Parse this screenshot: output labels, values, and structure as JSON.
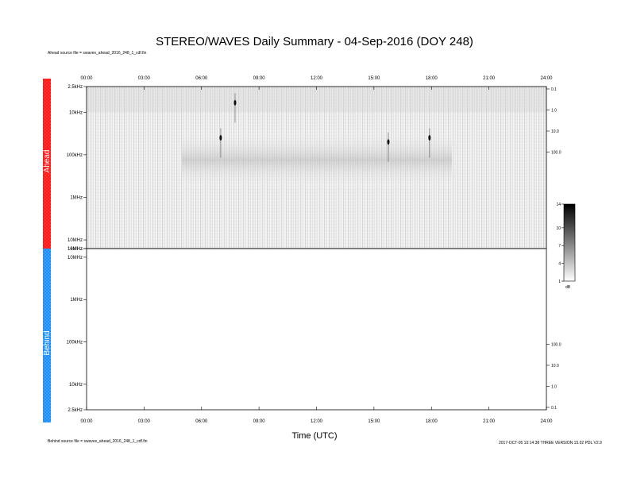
{
  "title": "STEREO/WAVES Daily Summary - 04-Sep-2016 (DOY 248)",
  "ahead_source": "Ahead source file = swaves_ahead_2016_248_1_cdf.fin",
  "behind_source": "Behind source file = swaves_ahead_2016_248_1_cdf.fin",
  "footer_right": "2017-OCT-05 10:14:38 THREE VERSION 15.02 PDL V2.9",
  "chart_data": {
    "type": "heatmap",
    "title": "STEREO/WAVES Daily Summary - 04-Sep-2016 (DOY 248)",
    "xlabel": "Time (UTC)",
    "x_ticks": [
      "00:00",
      "03:00",
      "06:00",
      "09:00",
      "12:00",
      "15:00",
      "18:00",
      "21:00",
      "24:00"
    ],
    "xlim_hours": [
      0,
      24
    ],
    "panels": [
      {
        "name": "Ahead",
        "color": "#ff1a1a",
        "y_ticks": [
          "2.5kHz",
          "10kHz",
          "100kHz",
          "1MHz",
          "10MHz",
          "16MHz"
        ],
        "y_tick_freq_khz": [
          2.5,
          10,
          100,
          1000,
          10000,
          16000
        ],
        "right_ticks": [
          "0.1",
          "1.0",
          "10.0",
          "100.0"
        ],
        "has_data": true,
        "bursts": [
          {
            "time_h": 7.0,
            "freq_khz": 40
          },
          {
            "time_h": 7.75,
            "freq_khz": 6
          },
          {
            "time_h": 15.75,
            "freq_khz": 50
          },
          {
            "time_h": 17.9,
            "freq_khz": 40
          }
        ]
      },
      {
        "name": "Behind",
        "color": "#1a8cff",
        "y_ticks": [
          "16MHz",
          "10MHz",
          "1MHz",
          "100kHz",
          "10kHz",
          "2.5kHz"
        ],
        "y_tick_freq_khz": [
          16000,
          10000,
          1000,
          100,
          10,
          2.5
        ],
        "right_ticks": [
          "100.0",
          "10.0",
          "1.0",
          "0.1"
        ],
        "has_data": false
      }
    ],
    "colorbar": {
      "ticks": [
        "14",
        "10",
        "7",
        "4",
        "1"
      ],
      "tick_values": [
        14,
        10,
        7,
        4,
        1
      ],
      "range": [
        1,
        14
      ],
      "unit": "dB"
    }
  }
}
